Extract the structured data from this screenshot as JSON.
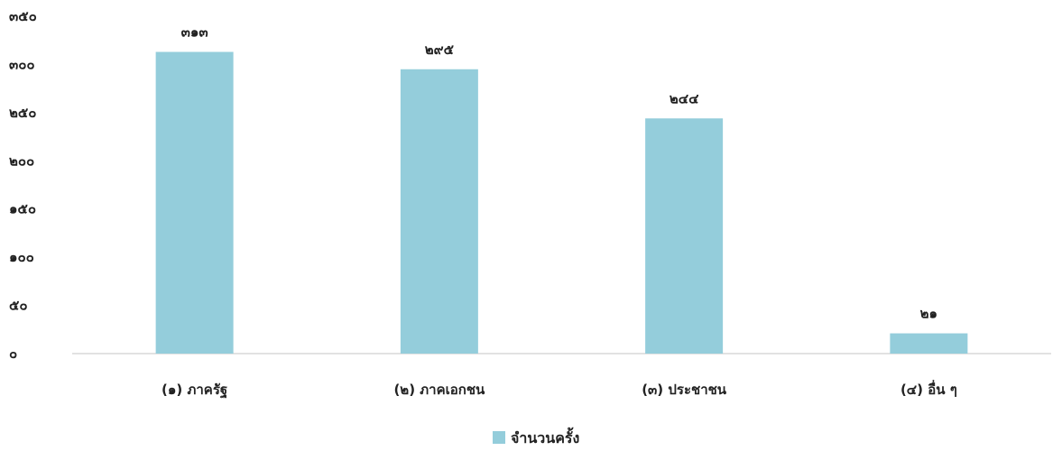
{
  "chart_data": {
    "type": "bar",
    "categories": [
      "(๑) ภาครัฐ",
      "(๒) ภาคเอกชน",
      "(๓) ประชาชน",
      "(๔) อื่น ๆ"
    ],
    "series": [
      {
        "name": "จำนวนครั้ง",
        "values": [
          313,
          295,
          244,
          21
        ],
        "labels": [
          "๓๑๓",
          "๒๙๕",
          "๒๔๔",
          "๒๑"
        ]
      }
    ],
    "y_ticks": [
      0,
      50,
      100,
      150,
      200,
      250,
      300,
      350
    ],
    "y_tick_labels": [
      "๐",
      "๕๐",
      "๑๐๐",
      "๑๕๐",
      "๒๐๐",
      "๒๕๐",
      "๓๐๐",
      "๓๕๐"
    ],
    "ylim": [
      0,
      350
    ],
    "grid": false,
    "legend_position": "bottom",
    "colors": {
      "bar": "#94cddb",
      "axis": "#d9d9d9",
      "text": "#222222"
    }
  }
}
